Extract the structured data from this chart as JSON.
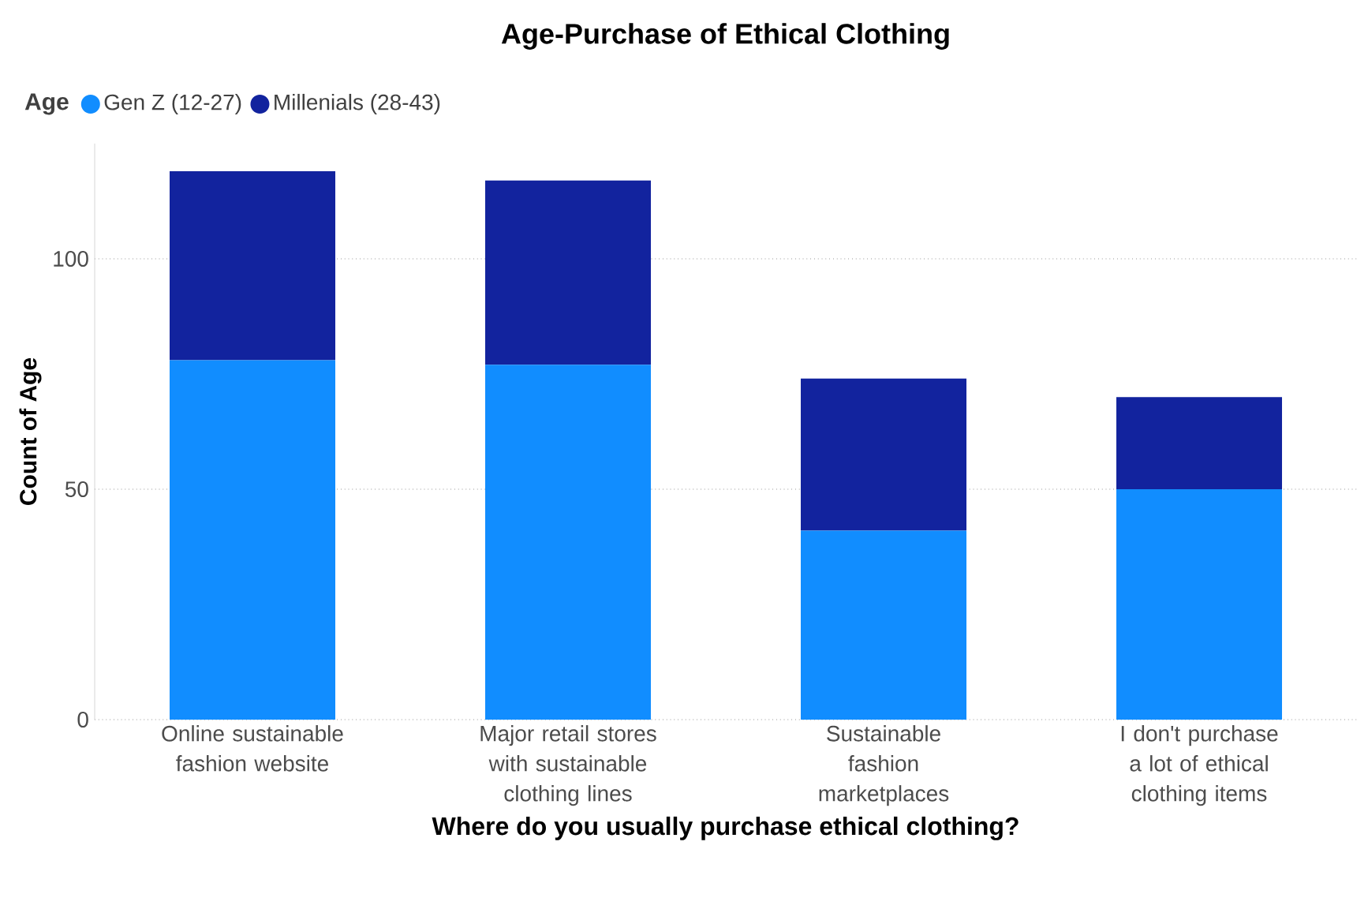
{
  "chart_data": {
    "type": "bar",
    "stacked": true,
    "title": "Age-Purchase of Ethical Clothing",
    "xlabel": "Where do you usually purchase ethical clothing?",
    "ylabel": "Count of Age",
    "legend_title": "Age",
    "legend": "top left",
    "grid": "y",
    "categories": [
      "Online sustainable fashion website",
      "Major retail stores with sustainable clothing lines",
      "Sustainable fashion marketplaces",
      "I don't purchase a lot of ethical clothing items"
    ],
    "series": [
      {
        "name": "Gen Z (12-27)",
        "color": "#118dff",
        "values": [
          78,
          77,
          41,
          50
        ]
      },
      {
        "name": "Millenials (28-43)",
        "color": "#12239e",
        "values": [
          41,
          40,
          33,
          20
        ]
      }
    ],
    "ylim": [
      0,
      125
    ],
    "yticks": [
      0,
      50,
      100
    ]
  }
}
